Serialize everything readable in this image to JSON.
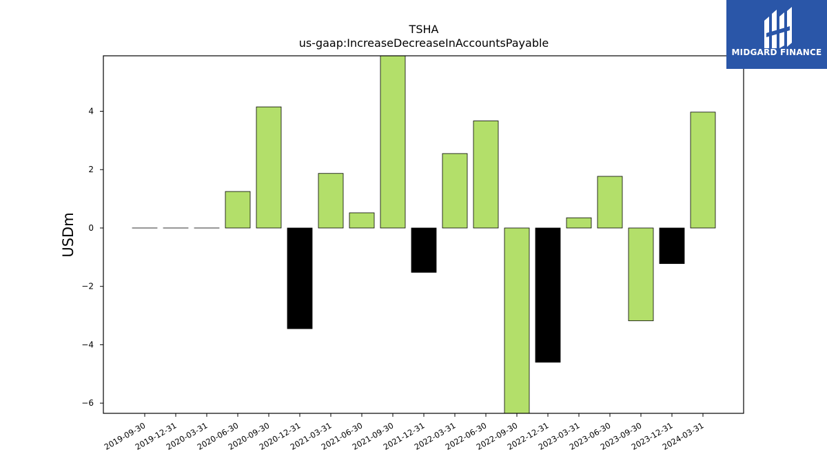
{
  "chart_data": {
    "type": "bar",
    "title": "TSHA",
    "subtitle": "us-gaap:IncreaseDecreaseInAccountsPayable",
    "xlabel": "",
    "ylabel": "USDm",
    "categories": [
      "2019-09-30",
      "2019-12-31",
      "2020-03-31",
      "2020-06-30",
      "2020-09-30",
      "2020-12-31",
      "2021-03-31",
      "2021-06-30",
      "2021-09-30",
      "2021-12-31",
      "2022-03-31",
      "2022-06-30",
      "2022-09-30",
      "2022-12-31",
      "2023-03-31",
      "2023-06-30",
      "2023-09-30",
      "2023-12-31",
      "2024-03-31"
    ],
    "values": [
      0,
      0,
      0,
      1.25,
      4.15,
      -3.45,
      1.87,
      0.52,
      5.9,
      -1.52,
      2.55,
      3.67,
      -6.35,
      -4.6,
      0.35,
      1.77,
      -3.18,
      -1.22,
      3.97
    ],
    "bar_colors": [
      "#b3df6a",
      "#b3df6a",
      "#b3df6a",
      "#b3df6a",
      "#b3df6a",
      "#000000",
      "#b3df6a",
      "#b3df6a",
      "#b3df6a",
      "#000000",
      "#b3df6a",
      "#b3df6a",
      "#b3df6a",
      "#000000",
      "#b3df6a",
      "#b3df6a",
      "#b3df6a",
      "#000000",
      "#b3df6a"
    ],
    "ylim": [
      -6.35,
      5.9
    ],
    "yticks": [
      -6,
      -4,
      -2,
      0,
      2,
      4
    ],
    "ytick_labels": [
      "−6",
      "−4",
      "−2",
      "0",
      "2",
      "4"
    ],
    "grid": false,
    "legend": "none"
  },
  "logo": {
    "text": "MIDGARD FINANCE",
    "background": "#2a56a8",
    "icon": "midgard-logo-icon"
  }
}
